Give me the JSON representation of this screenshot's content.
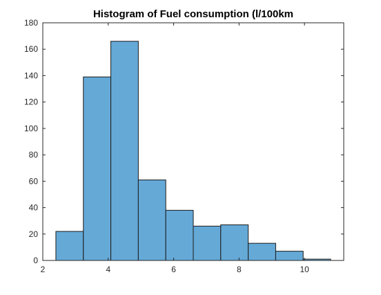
{
  "chart_data": {
    "type": "histogram",
    "title": "Histogram of Fuel consumption (l/100km",
    "xlabel": "",
    "ylabel": "",
    "xlim": [
      2,
      11.2
    ],
    "ylim": [
      0,
      180
    ],
    "x_ticks": [
      2,
      4,
      6,
      8,
      10
    ],
    "y_ticks": [
      0,
      20,
      40,
      60,
      80,
      100,
      120,
      140,
      160,
      180
    ],
    "bin_edges": [
      2.4,
      3.24,
      4.08,
      4.92,
      5.76,
      6.6,
      7.44,
      8.28,
      9.12,
      9.96,
      10.8
    ],
    "counts": [
      22,
      139,
      166,
      61,
      38,
      26,
      27,
      13,
      7,
      1
    ],
    "grid": false,
    "legend": "none",
    "bar_color": "#65a9d7",
    "edge_color": "#1a1a1a"
  }
}
